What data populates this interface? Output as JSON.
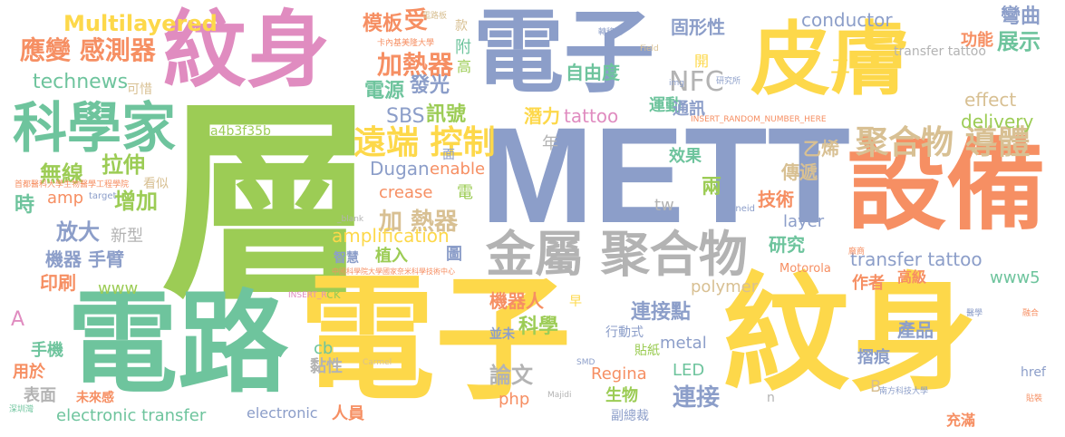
{
  "palette": {
    "green": "#9ccc55",
    "blue": "#8c9ec9",
    "yellow": "#fdd84a",
    "pink": "#e08cc0",
    "teal": "#6ec49d",
    "orange": "#f68f63",
    "tan": "#d8c093",
    "gray": "#b3b3b3",
    "background": "#ffffff"
  },
  "words": {
    "ceng": "層",
    "mett": "METT",
    "dianzi_top": "電子",
    "wenshen_top": "紋身",
    "pifu": "皮膚",
    "dianlu": "電路",
    "dianzi_bottom": "電子",
    "wenshen_bottom": "紋身",
    "shebei": "設備",
    "kexuejia": "科學家",
    "jinshu_juhewu": "金屬 聚合物",
    "yuanduan_kongzhi": "遠端 控制",
    "juhewu_daoti": "聚合物 導體",
    "multilayered": "Multilayered",
    "yingbian_ganceqi": "應變 感測器",
    "jiareqi_1": "加熱器",
    "jiareqi_2": "加 熱器",
    "technews": "technews",
    "nfc": "NFC",
    "conductor": "conductor",
    "effect": "effect",
    "delivery": "delivery",
    "zhanshi": "展示",
    "wanqu": "彎曲",
    "gongneng": "功能",
    "guxingxing": "固形性",
    "ziyoudu": "自由度",
    "moban": "模板",
    "shou": "受",
    "dianyuan": "電源",
    "faguang": "發光",
    "sbs": "SBS",
    "xunhao": "訊號",
    "qianli": "潛力",
    "tattoo": "tattoo",
    "yundong": "運動",
    "tongxun": "通訊",
    "wuxian": "無線",
    "lashen": "拉伸",
    "zengjia": "增加",
    "fangda": "放大",
    "xinxing": "新型",
    "jiqi_shoubi": "機器 手臂",
    "yinshua": "印刷",
    "shi": "時",
    "amp": "amp",
    "kansi": "看似",
    "hash": "a4b3f35b",
    "dugan": "Dugan",
    "enable": "enable",
    "crease": "crease",
    "amplification": "amplification",
    "zhiru": "植入",
    "zhihui": "智慧",
    "tu": "圖",
    "xiaoguo": "效果",
    "liang": "兩",
    "jishu": "技術",
    "tw": "tw",
    "chuandi": "傳遞",
    "yixi": "乙烯",
    "yanjiu": "研究",
    "transfer_tattoo_1": "transfer tattoo",
    "transfer_tattoo_2": "transfer tattoo",
    "layer": "layer",
    "www": "www",
    "www5": "www5",
    "gaoji": "高級",
    "zuozhe": "作者",
    "polymer": "polymer",
    "jiqiren": "機器人",
    "lianjiedian": "連接點",
    "kexue": "科學",
    "metal": "metal",
    "led": "LED",
    "lianjie": "連接",
    "lunwen": "論文",
    "regina": "Regina",
    "shengwu": "生物",
    "php": "php",
    "chanpin": "產品",
    "zhehen": "摺痕",
    "href": "href",
    "electronic_transfer": "electronic transfer",
    "electronic": "electronic",
    "renyuan": "人員",
    "shouji": "手機",
    "yongyu": "用於",
    "biaomian": "表面",
    "weilaigan": "未來感",
    "cb": "cb",
    "nianxing": "黏性",
    "a": "A",
    "b": "B",
    "motorola": "Motorola",
    "chongman": "充滿",
    "fuzongcai": "副總裁",
    "xingdongshi": "行動式",
    "tiezhi": "貼紙",
    "bingwei": "並未",
    "nian": "年",
    "fu": "附",
    "gao": "高",
    "kuan": "款",
    "kaixi": "可惜",
    "dian": "電",
    "mian": "面",
    "ck": "ck",
    "kai": "開",
    "zoneid": "zoneid",
    "er": "二",
    "n": "n",
    "zao": "早",
    "target": "target",
    "small_1": "卡內基美隆大學",
    "small_2": "電路板",
    "small_3": "首都醫科大學生物醫學工程學院",
    "small_4": "中國科學院大學國家奈米科學技術中心",
    "small_5": "南方科技大學",
    "small_6": "INSERT_RANDOM_NUMBER_HERE",
    "small_7": "研究所",
    "small_8": "轉移到",
    "small_9": "INSERT_R",
    "small_10": "Carmel",
    "small_11": "Majidi",
    "small_12": "Field",
    "small_13": "img",
    "small_14": "_blank",
    "small_15": "SMD",
    "small_16": "深圳灣",
    "small_17": "廠商",
    "small_18": "醫學",
    "small_19": "融合",
    "small_20": "貼裝"
  }
}
